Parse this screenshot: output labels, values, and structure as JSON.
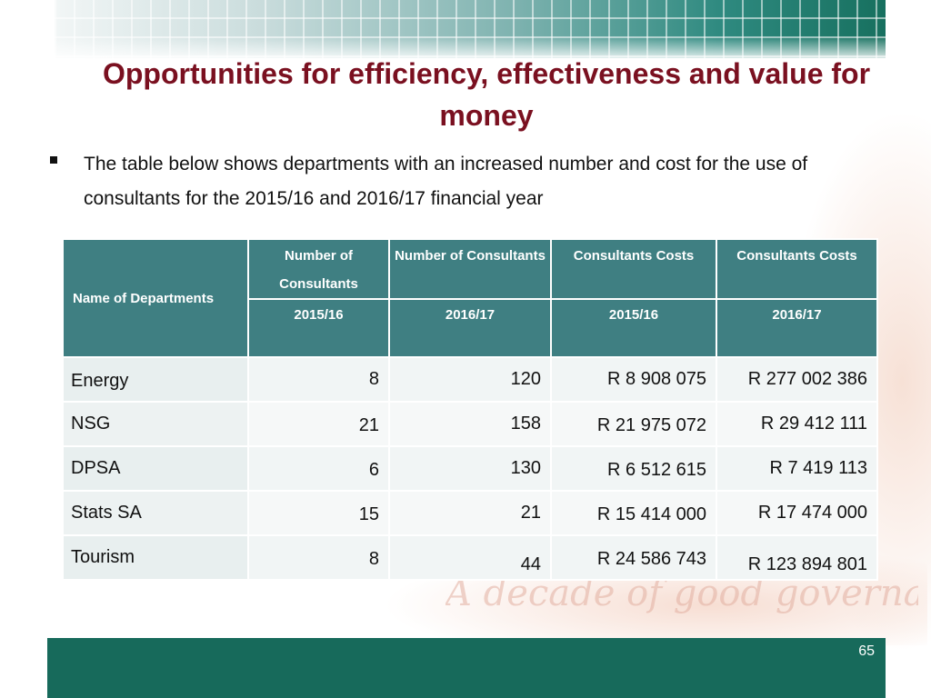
{
  "slide": {
    "title": "Opportunities for efficiency, effectiveness and value for money",
    "bullet": "The table below shows departments with an increased number and cost for the use of consultants for the 2015/16 and 2016/17 financial year",
    "page_number": "65",
    "watermark": "A decade of good governance"
  },
  "table": {
    "headers": {
      "name": "Name of Departments",
      "col1_top": "Number of Consultants",
      "col1_bottom": "2015/16",
      "col2_top": "Number of Consultants",
      "col2_bottom": "2016/17",
      "col3_top": "Consultants Costs",
      "col3_bottom": "2015/16",
      "col4_top": "Consultants Costs",
      "col4_bottom": "2016/17"
    },
    "rows": [
      {
        "name": "Energy",
        "c2015": "8",
        "c2016": "120",
        "cost2015": "R 8 908 075",
        "cost2016": "R 277 002 386"
      },
      {
        "name": "NSG",
        "c2015": "21",
        "c2016": "158",
        "cost2015": "R 21 975 072",
        "cost2016": "R 29 412 111"
      },
      {
        "name": "DPSA",
        "c2015": "6",
        "c2016": "130",
        "cost2015": "R 6 512 615",
        "cost2016": "R 7 419 113"
      },
      {
        "name": "Stats SA",
        "c2015": "15",
        "c2016": "21",
        "cost2015": "R 15 414 000",
        "cost2016": "R 17 474 000"
      },
      {
        "name": "Tourism",
        "c2015": "8",
        "c2016": "44",
        "cost2015": "R 24 586 743",
        "cost2016": "R 123 894 801"
      }
    ]
  },
  "colors": {
    "title": "#7a1020",
    "header_fill": "#3f7f82",
    "footer_band": "#176a5b"
  }
}
